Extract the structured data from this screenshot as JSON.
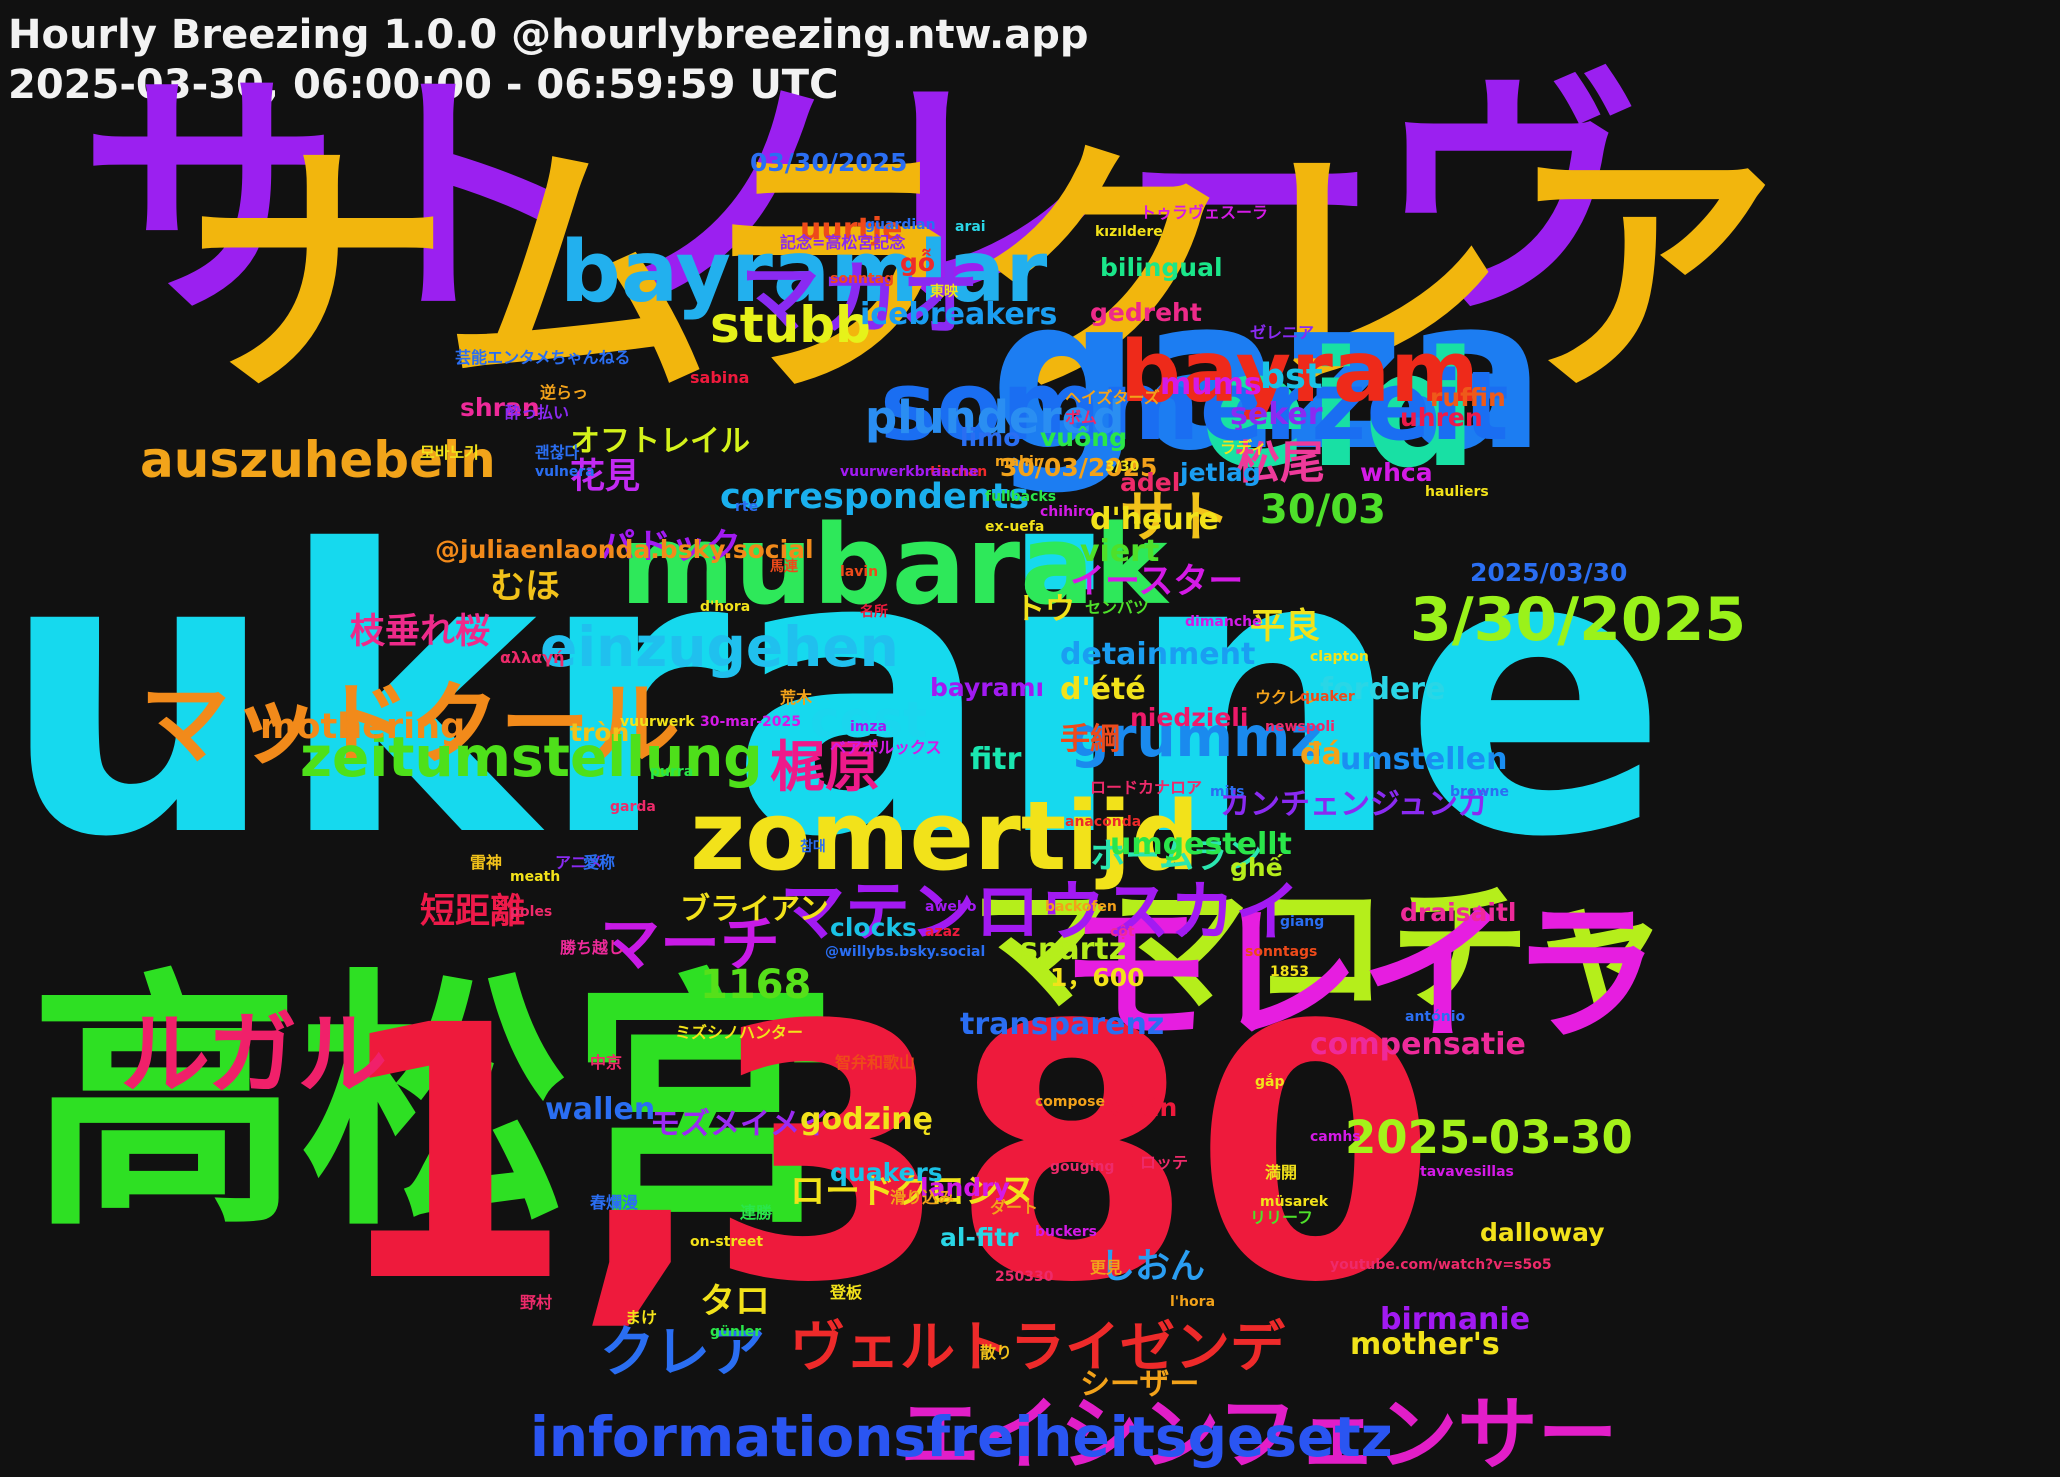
{
  "header": {
    "title": "Hourly Breezing 1.0.0 @hourlybreezing.ntw.app",
    "subtitle": "2025-03-30, 06:00:00 - 06:59:59 UTC"
  },
  "words": [
    {
      "text": "ukraine",
      "color": "#16d9ee"
    },
    {
      "text": "サトノレーヴ",
      "color": "#9b20f0"
    },
    {
      "text": "ナムラクレア",
      "color": "#f2b60d"
    },
    {
      "text": "高松宮",
      "color": "#2ee023"
    },
    {
      "text": "1,380",
      "color": "#ee1a3c"
    },
    {
      "text": "gaza",
      "color": "#1c7df2"
    },
    {
      "text": "eid",
      "color": "#18e0a4"
    },
    {
      "text": "ママコチャ",
      "color": "#b5ee1b"
    },
    {
      "text": "モレイラ",
      "color": "#e61ee0"
    },
    {
      "text": "mubarak",
      "color": "#2ee85a"
    },
    {
      "text": "zomertijd",
      "color": "#f2e21a"
    },
    {
      "text": "sommerzeit",
      "color": "#1a6ef2"
    },
    {
      "text": "bayramlar",
      "color": "#22b0ee"
    },
    {
      "text": "マッドクール",
      "color": "#f28a1a"
    },
    {
      "text": "ルガル",
      "color": "#f0206a"
    },
    {
      "text": "bayram",
      "color": "#ee2a1a"
    },
    {
      "text": "エイシンフェンサー",
      "color": "#e21ec8"
    },
    {
      "text": "informationsfreiheitsgesetz",
      "color": "#2a55f2"
    },
    {
      "text": "マカオ",
      "color": "#8a2af2"
    },
    {
      "text": "3/30/2025",
      "color": "#9af21a"
    },
    {
      "text": "einzugehen",
      "color": "#20c0ee"
    },
    {
      "text": "zeitumstellung",
      "color": "#4ee01a"
    },
    {
      "text": "grummz",
      "color": "#1a8aee"
    },
    {
      "text": "マテンロウスカイ",
      "color": "#a21af2"
    },
    {
      "text": "auszuhebeln",
      "color": "#f2a41a"
    },
    {
      "text": "stubb",
      "color": "#e6f21a"
    },
    {
      "text": "cest",
      "color": "#1ad6ee"
    },
    {
      "text": "ヴェルトライゼンデ",
      "color": "#ee2a2a"
    },
    {
      "text": "梶原",
      "color": "#ee1a8a"
    },
    {
      "text": "マーチ",
      "color": "#c81ae6"
    },
    {
      "text": "2025-03-30",
      "color": "#a4f21a"
    },
    {
      "text": "クレア",
      "color": "#2a6ef2"
    },
    {
      "text": "plundered",
      "color": "#2a8ef2"
    },
    {
      "text": "correspondents",
      "color": "#1ab0ee"
    },
    {
      "text": "サト",
      "color": "#f2c21a"
    },
    {
      "text": "松尾",
      "color": "#ee3a9a"
    },
    {
      "text": "30/03",
      "color": "#4ee02a"
    },
    {
      "text": "bst",
      "color": "#1ac2e6"
    },
    {
      "text": "mothering",
      "color": "#f28a1a"
    },
    {
      "text": "1168",
      "color": "#56e01a"
    },
    {
      "text": "オフトレイル",
      "color": "#d4f21a"
    },
    {
      "text": "パドック",
      "color": "#a21af2"
    },
    {
      "text": "花見",
      "color": "#c22af2"
    },
    {
      "text": "むほ",
      "color": "#f2c21a"
    },
    {
      "text": "枝垂れ桜",
      "color": "#ee2a8a"
    },
    {
      "text": "イースター",
      "color": "#d41ae6"
    },
    {
      "text": "短距離",
      "color": "#ee1a4a"
    },
    {
      "text": "ブライアン",
      "color": "#f2e21a"
    },
    {
      "text": "ホームラン",
      "color": "#2ae6b0"
    },
    {
      "text": "カンチェンジュンガ",
      "color": "#8a2af2"
    },
    {
      "text": "モズメイメイ",
      "color": "#9a2af2"
    },
    {
      "text": "ロードクロンヌ",
      "color": "#f2e21a"
    },
    {
      "text": "しおん",
      "color": "#2a9ef2"
    },
    {
      "text": "タロ",
      "color": "#f2e21a"
    },
    {
      "text": "シーザー",
      "color": "#f2a21a"
    },
    {
      "text": "手綱",
      "color": "#ee4a1a"
    },
    {
      "text": "平良",
      "color": "#f2e21a"
    },
    {
      "text": "トウ",
      "color": "#f2e21a"
    },
    {
      "text": "@juliaenlaonda.bsky.social",
      "color": "#f28a1a"
    },
    {
      "text": "03/30/2025",
      "color": "#2a6ef2"
    },
    {
      "text": "2025/03/30",
      "color": "#2a6ef2"
    },
    {
      "text": "30/03/2025",
      "color": "#f2a21a"
    },
    {
      "text": "1，600",
      "color": "#f2e21a"
    },
    {
      "text": "icebreakers",
      "color": "#1a9ef2"
    },
    {
      "text": "uurtje",
      "color": "#ee4a1a"
    },
    {
      "text": "gỗ",
      "color": "#ee2a2a"
    },
    {
      "text": "ruffin",
      "color": "#ee5a1a"
    },
    {
      "text": "bilingual",
      "color": "#1ae68a"
    },
    {
      "text": "gedreht",
      "color": "#ee2a8a"
    },
    {
      "text": "whca",
      "color": "#d41ae6"
    },
    {
      "text": "mums",
      "color": "#d41ae6"
    },
    {
      "text": "şeker",
      "color": "#8a2af2"
    },
    {
      "text": "jetlag",
      "color": "#1a9ef2"
    },
    {
      "text": "adel",
      "color": "#ee2a6a"
    },
    {
      "text": "uhren",
      "color": "#ee1a4a"
    },
    {
      "text": "shran",
      "color": "#ee2a9a"
    },
    {
      "text": "vuông",
      "color": "#2ae64a"
    },
    {
      "text": "limo",
      "color": "#2a6ef2"
    },
    {
      "text": "bayramı",
      "color": "#a21af2"
    },
    {
      "text": "viert",
      "color": "#4ee02a"
    },
    {
      "text": "d'heure",
      "color": "#f2e21a"
    },
    {
      "text": "detainment",
      "color": "#1a9ef2"
    },
    {
      "text": "d'été",
      "color": "#f2e21a"
    },
    {
      "text": "fordere",
      "color": "#2ad6e6"
    },
    {
      "text": "umstellen",
      "color": "#1a8ef2"
    },
    {
      "text": "đá",
      "color": "#f2a21a"
    },
    {
      "text": "niedzieli",
      "color": "#ee1a6a"
    },
    {
      "text": "tròn",
      "color": "#f2c21a"
    },
    {
      "text": "fitr",
      "color": "#1ae6b0"
    },
    {
      "text": "umgestellt",
      "color": "#2ae64a"
    },
    {
      "text": "clocks",
      "color": "#1ac2e6"
    },
    {
      "text": "ghế",
      "color": "#b5ee1b"
    },
    {
      "text": "spartz",
      "color": "#b5ee1b"
    },
    {
      "text": "draisaitl",
      "color": "#ee2a9a"
    },
    {
      "text": "transparenz",
      "color": "#2a6ef2"
    },
    {
      "text": "compensatie",
      "color": "#ee2a9a"
    },
    {
      "text": "wallen",
      "color": "#2a6ef2"
    },
    {
      "text": "chân",
      "color": "#ee1a3c"
    },
    {
      "text": "dalloway",
      "color": "#f2e21a"
    },
    {
      "text": "godzinę",
      "color": "#f2e21a"
    },
    {
      "text": "quakers",
      "color": "#1ac2e6"
    },
    {
      "text": "landry",
      "color": "#d41ae6"
    },
    {
      "text": "al-fitr",
      "color": "#2ad6e6"
    },
    {
      "text": "birmanie",
      "color": "#a21af2"
    },
    {
      "text": "mother's",
      "color": "#f2e21a"
    },
    {
      "text": "芸能エンタメちゃんねる",
      "color": "#2a6ef2"
    },
    {
      "text": "逆らっ",
      "color": "#f2a21a"
    },
    {
      "text": "酔っ払い",
      "color": "#8a2af2"
    },
    {
      "text": "괜찮다",
      "color": "#2a6ef2"
    },
    {
      "text": "모바노기",
      "color": "#f2e21a"
    },
    {
      "text": "記念=高松宮記念",
      "color": "#8a2af2"
    },
    {
      "text": "東映",
      "color": "#f2e21a"
    },
    {
      "text": "名所",
      "color": "#ee1a3c"
    },
    {
      "text": "馬連",
      "color": "#ee4a1a"
    },
    {
      "text": "荒木",
      "color": "#f2a21a"
    },
    {
      "text": "ベアポルックス",
      "color": "#d41ae6"
    },
    {
      "text": "雷神",
      "color": "#f2c21a"
    },
    {
      "text": "アニメ",
      "color": "#8a2af2"
    },
    {
      "text": "愛称",
      "color": "#2a6ef2"
    },
    {
      "text": "勝ち越し",
      "color": "#ee2a9a"
    },
    {
      "text": "ミズシノハンター",
      "color": "#f2e21a"
    },
    {
      "text": "中京",
      "color": "#ee2a6a"
    },
    {
      "text": "智弁和歌山",
      "color": "#ee4a1a"
    },
    {
      "text": "ロッテ",
      "color": "#ee2a6a"
    },
    {
      "text": "満開",
      "color": "#f2e21a"
    },
    {
      "text": "春爛漫",
      "color": "#2a6ef2"
    },
    {
      "text": "滑り込み",
      "color": "#f2a21a"
    },
    {
      "text": "ダート",
      "color": "#f2a21a"
    },
    {
      "text": "連勝",
      "color": "#2ae64a"
    },
    {
      "text": "リリーフ",
      "color": "#4ee02a"
    },
    {
      "text": "更見",
      "color": "#f2a21a"
    },
    {
      "text": "登板",
      "color": "#f2e21a"
    },
    {
      "text": "野村",
      "color": "#ee2a6a"
    },
    {
      "text": "まけ",
      "color": "#f2e21a"
    },
    {
      "text": "散り",
      "color": "#f2c21a"
    },
    {
      "text": "ゼレニア",
      "color": "#8a2af2"
    },
    {
      "text": "トゥラヴェスーラ",
      "color": "#d41ae6"
    },
    {
      "text": "ヘイズターズ",
      "color": "#f2a21a"
    },
    {
      "text": "ボム",
      "color": "#ee2a6a"
    },
    {
      "text": "ラディ",
      "color": "#f2e21a"
    },
    {
      "text": "センバツ",
      "color": "#4ee02a"
    },
    {
      "text": "ウクレレ",
      "color": "#f2a21a"
    },
    {
      "text": "ロードカナロア",
      "color": "#ee2a6a"
    },
    {
      "text": "sabina",
      "color": "#ee1a3c"
    },
    {
      "text": "αλλαγή",
      "color": "#ee2a6a"
    },
    {
      "text": "tiernan",
      "color": "#ee2a2a"
    },
    {
      "text": "lavin",
      "color": "#ee4a1a"
    },
    {
      "text": "d'hora",
      "color": "#f2e21a"
    },
    {
      "text": "3/30",
      "color": "#f2e21a"
    },
    {
      "text": "30-mar-2025",
      "color": "#d41ae6"
    },
    {
      "text": "imza",
      "color": "#a21af2"
    },
    {
      "text": "vuurwerk",
      "color": "#f2e21a"
    },
    {
      "text": "meath",
      "color": "#f2e21a"
    },
    {
      "text": "poles",
      "color": "#ee2a6a"
    },
    {
      "text": "arai",
      "color": "#2ad6e6"
    },
    {
      "text": "guardian",
      "color": "#2a6ef2"
    },
    {
      "text": "sonntag",
      "color": "#ee4a1a"
    },
    {
      "text": "rté",
      "color": "#2a6ef2"
    },
    {
      "text": "vuurwerkbranche",
      "color": "#a21af2"
    },
    {
      "text": "fullbacks",
      "color": "#2ae64a"
    },
    {
      "text": "mahir",
      "color": "#f2a21a"
    },
    {
      "text": "chihiro",
      "color": "#d41ae6"
    },
    {
      "text": "ex-uefa",
      "color": "#f2e21a"
    },
    {
      "text": "kızıldere",
      "color": "#f2e21a"
    },
    {
      "text": "hauliers",
      "color": "#f2e21a"
    },
    {
      "text": "clapton",
      "color": "#f2e21a"
    },
    {
      "text": "dimanche",
      "color": "#d41ae6"
    },
    {
      "text": "quaker",
      "color": "#ee4a1a"
    },
    {
      "text": "newspoli",
      "color": "#ee2a6a"
    },
    {
      "text": "browne",
      "color": "#2a6ef2"
    },
    {
      "text": "mits",
      "color": "#2a6ef2"
    },
    {
      "text": "anaconda",
      "color": "#ee2a2a"
    },
    {
      "text": "garda",
      "color": "#ee2a6a"
    },
    {
      "text": "purra",
      "color": "#2ae64a"
    },
    {
      "text": "awebo",
      "color": "#a21af2"
    },
    {
      "text": "azaz",
      "color": "#ee1a3c"
    },
    {
      "text": "backofen",
      "color": "#f2a21a"
    },
    {
      "text": "giang",
      "color": "#2a6ef2"
    },
    {
      "text": "sonntags",
      "color": "#ee4a1a"
    },
    {
      "text": "cột",
      "color": "#ee2a9a"
    },
    {
      "text": "1853",
      "color": "#f2e21a"
    },
    {
      "text": "@willybs.bsky.social",
      "color": "#2a6ef2"
    },
    {
      "text": "antónio",
      "color": "#2a6ef2"
    },
    {
      "text": "gắp",
      "color": "#f2e21a"
    },
    {
      "text": "compose",
      "color": "#f2a21a"
    },
    {
      "text": "camhs",
      "color": "#d41ae6"
    },
    {
      "text": "gouging",
      "color": "#ee2a6a"
    },
    {
      "text": "müsarek",
      "color": "#f2e21a"
    },
    {
      "text": "buckers",
      "color": "#d41ae6"
    },
    {
      "text": "on-street",
      "color": "#f2e21a"
    },
    {
      "text": "250330",
      "color": "#ee2a6a"
    },
    {
      "text": "l'hora",
      "color": "#f2a21a"
    },
    {
      "text": "günler",
      "color": "#2ae64a"
    },
    {
      "text": "youtube.com/watch?v=s5o5",
      "color": "#ee2a6a"
    },
    {
      "text": "tavavesillas",
      "color": "#d41ae6"
    },
    {
      "text": "참대",
      "color": "#2a6ef2"
    },
    {
      "text": "vulnera",
      "color": "#2a6ef2"
    }
  ]
}
